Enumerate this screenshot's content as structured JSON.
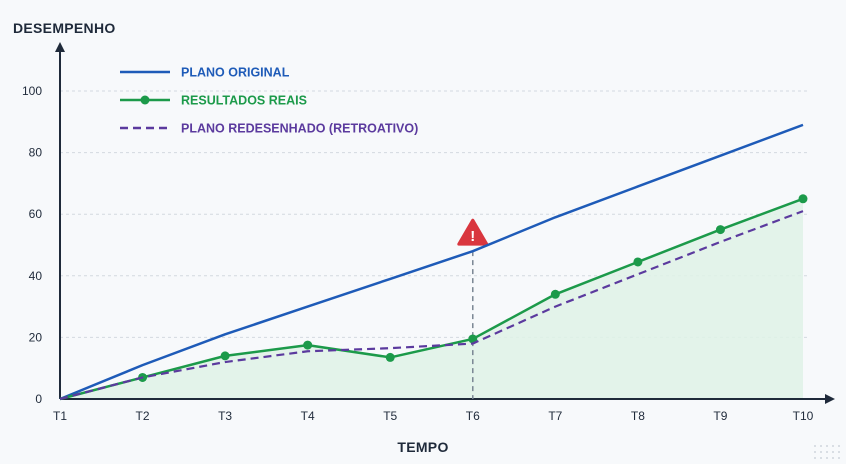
{
  "chart_data": {
    "type": "line",
    "title": "",
    "xlabel": "TEMPO",
    "ylabel": "DESEMPENHO",
    "categories": [
      "T1",
      "T2",
      "T3",
      "T4",
      "T5",
      "T6",
      "T7",
      "T8",
      "T9",
      "T10"
    ],
    "ylim": [
      0,
      100
    ],
    "yticks": [
      0,
      20,
      40,
      60,
      80,
      100
    ],
    "grid": true,
    "legend_position": "top-left",
    "series": [
      {
        "name": "PLANO ORIGINAL",
        "color": "#1e5bb8",
        "style": "solid",
        "markers": false,
        "values": [
          0,
          11,
          21,
          30,
          39,
          48,
          59,
          69,
          79,
          89
        ]
      },
      {
        "name": "RESULTADOS REAIS",
        "color": "#1c9a4a",
        "style": "solid",
        "markers": true,
        "fill": "#dff2e6",
        "values": [
          0,
          7,
          14,
          17.5,
          13.5,
          19.5,
          34,
          44.5,
          55,
          65
        ]
      },
      {
        "name": "PLANO REDESENHADO (RETROATIVO)",
        "color": "#5b3a9e",
        "style": "dashed",
        "markers": false,
        "values": [
          0,
          7,
          12,
          15.5,
          16.5,
          18,
          30,
          40.5,
          51,
          61
        ]
      }
    ],
    "annotations": [
      {
        "type": "warning",
        "at": "T6",
        "symbol": "!",
        "color": "#d9363e"
      }
    ]
  }
}
